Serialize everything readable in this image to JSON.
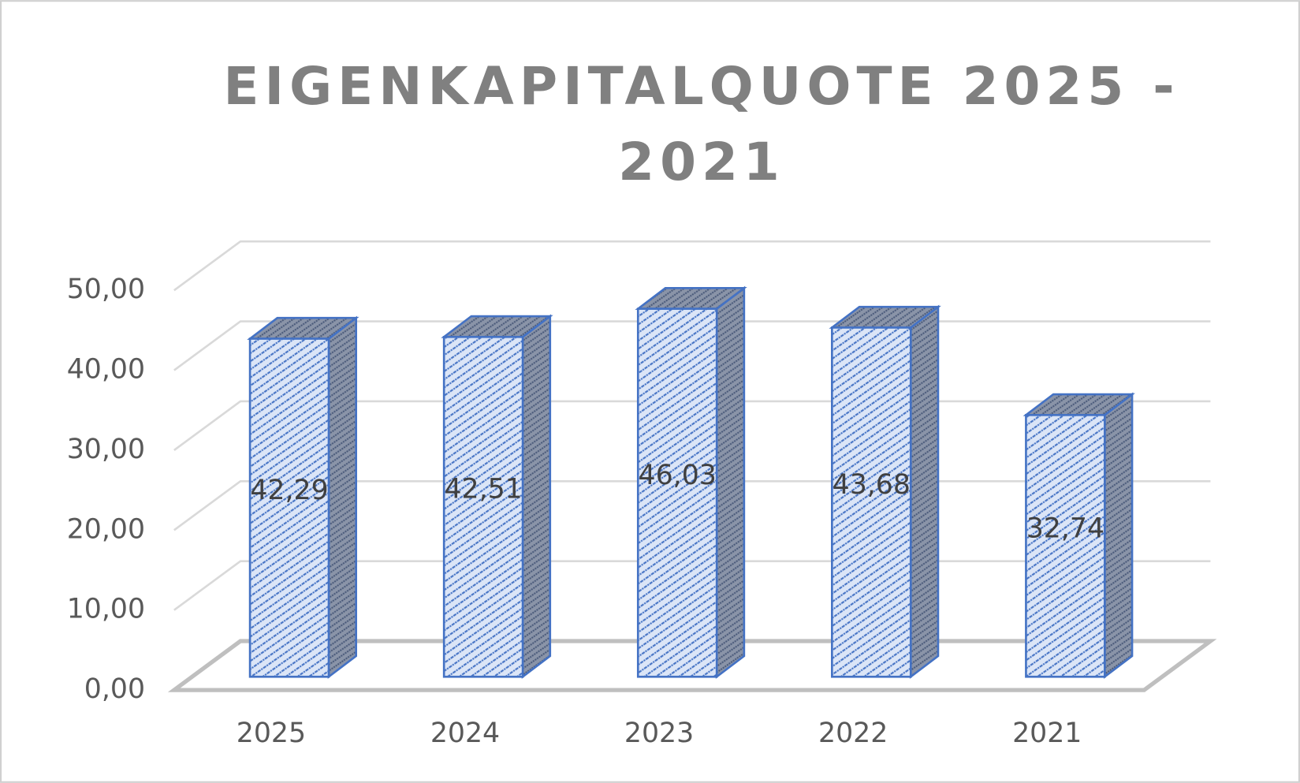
{
  "chart_data": {
    "type": "bar3d",
    "title": "EIGENKAPITALQUOTE 2025 - 2021",
    "categories": [
      "2025",
      "2024",
      "2023",
      "2022",
      "2021"
    ],
    "values": [
      42.29,
      42.51,
      46.03,
      43.68,
      32.74
    ],
    "value_labels": [
      "42,29",
      "42,51",
      "46,03",
      "43,68",
      "32,74"
    ],
    "color": "#4472c4",
    "ylim": [
      0,
      50
    ],
    "yticks": [
      {
        "value": 0,
        "label": "0,00"
      },
      {
        "value": 10,
        "label": "10,00"
      },
      {
        "value": 20,
        "label": "20,00"
      },
      {
        "value": 30,
        "label": "30,00"
      },
      {
        "value": 40,
        "label": "40,00"
      },
      {
        "value": 50,
        "label": "50,00"
      }
    ],
    "grid": true
  }
}
